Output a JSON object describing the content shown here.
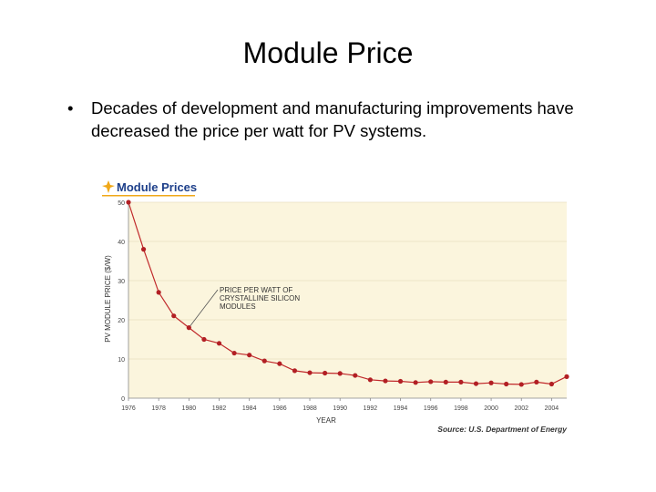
{
  "slide": {
    "title": "Module Price",
    "bullet": "Decades of development and manufacturing improvements have decreased the price per watt for PV systems."
  },
  "chart_data": {
    "type": "line",
    "title": "Module Prices",
    "xlabel": "YEAR",
    "ylabel": "PV MODULE PRICE ($/W)",
    "source": "Source: U.S. Department of Energy",
    "annotation": [
      "PRICE PER WATT OF",
      "CRYSTALLINE SILICON",
      "MODULES"
    ],
    "xlim": [
      1976,
      2005
    ],
    "ylim": [
      0,
      50
    ],
    "x_ticks": [
      1976,
      1978,
      1980,
      1982,
      1984,
      1986,
      1988,
      1990,
      1992,
      1994,
      1996,
      1998,
      2000,
      2002,
      2004
    ],
    "y_ticks": [
      0,
      10,
      20,
      30,
      40,
      50
    ],
    "grid": true,
    "colors": {
      "line": "#c0282a",
      "point": "#b21f24",
      "panel": "#fbf5dd",
      "grid": "#e8dfc0",
      "title": "#1d3f8a",
      "star": "#f0a818"
    },
    "series": [
      {
        "x": [
          1976,
          1977,
          1978,
          1979,
          1980,
          1981,
          1982,
          1983,
          1984,
          1985,
          1986,
          1987,
          1988,
          1989,
          1990,
          1991,
          1992,
          1993,
          1994,
          1995,
          1996,
          1997,
          1998,
          1999,
          2000,
          2001,
          2002,
          2003,
          2004,
          2005
        ],
        "values": [
          50,
          38,
          27,
          21,
          18,
          15,
          14,
          11.5,
          11,
          9.5,
          8.8,
          7,
          6.5,
          6.4,
          6.3,
          5.8,
          4.7,
          4.4,
          4.3,
          4,
          4.2,
          4.1,
          4.1,
          3.7,
          3.9,
          3.6,
          3.5,
          4.1,
          3.6,
          5.5
        ]
      }
    ]
  }
}
